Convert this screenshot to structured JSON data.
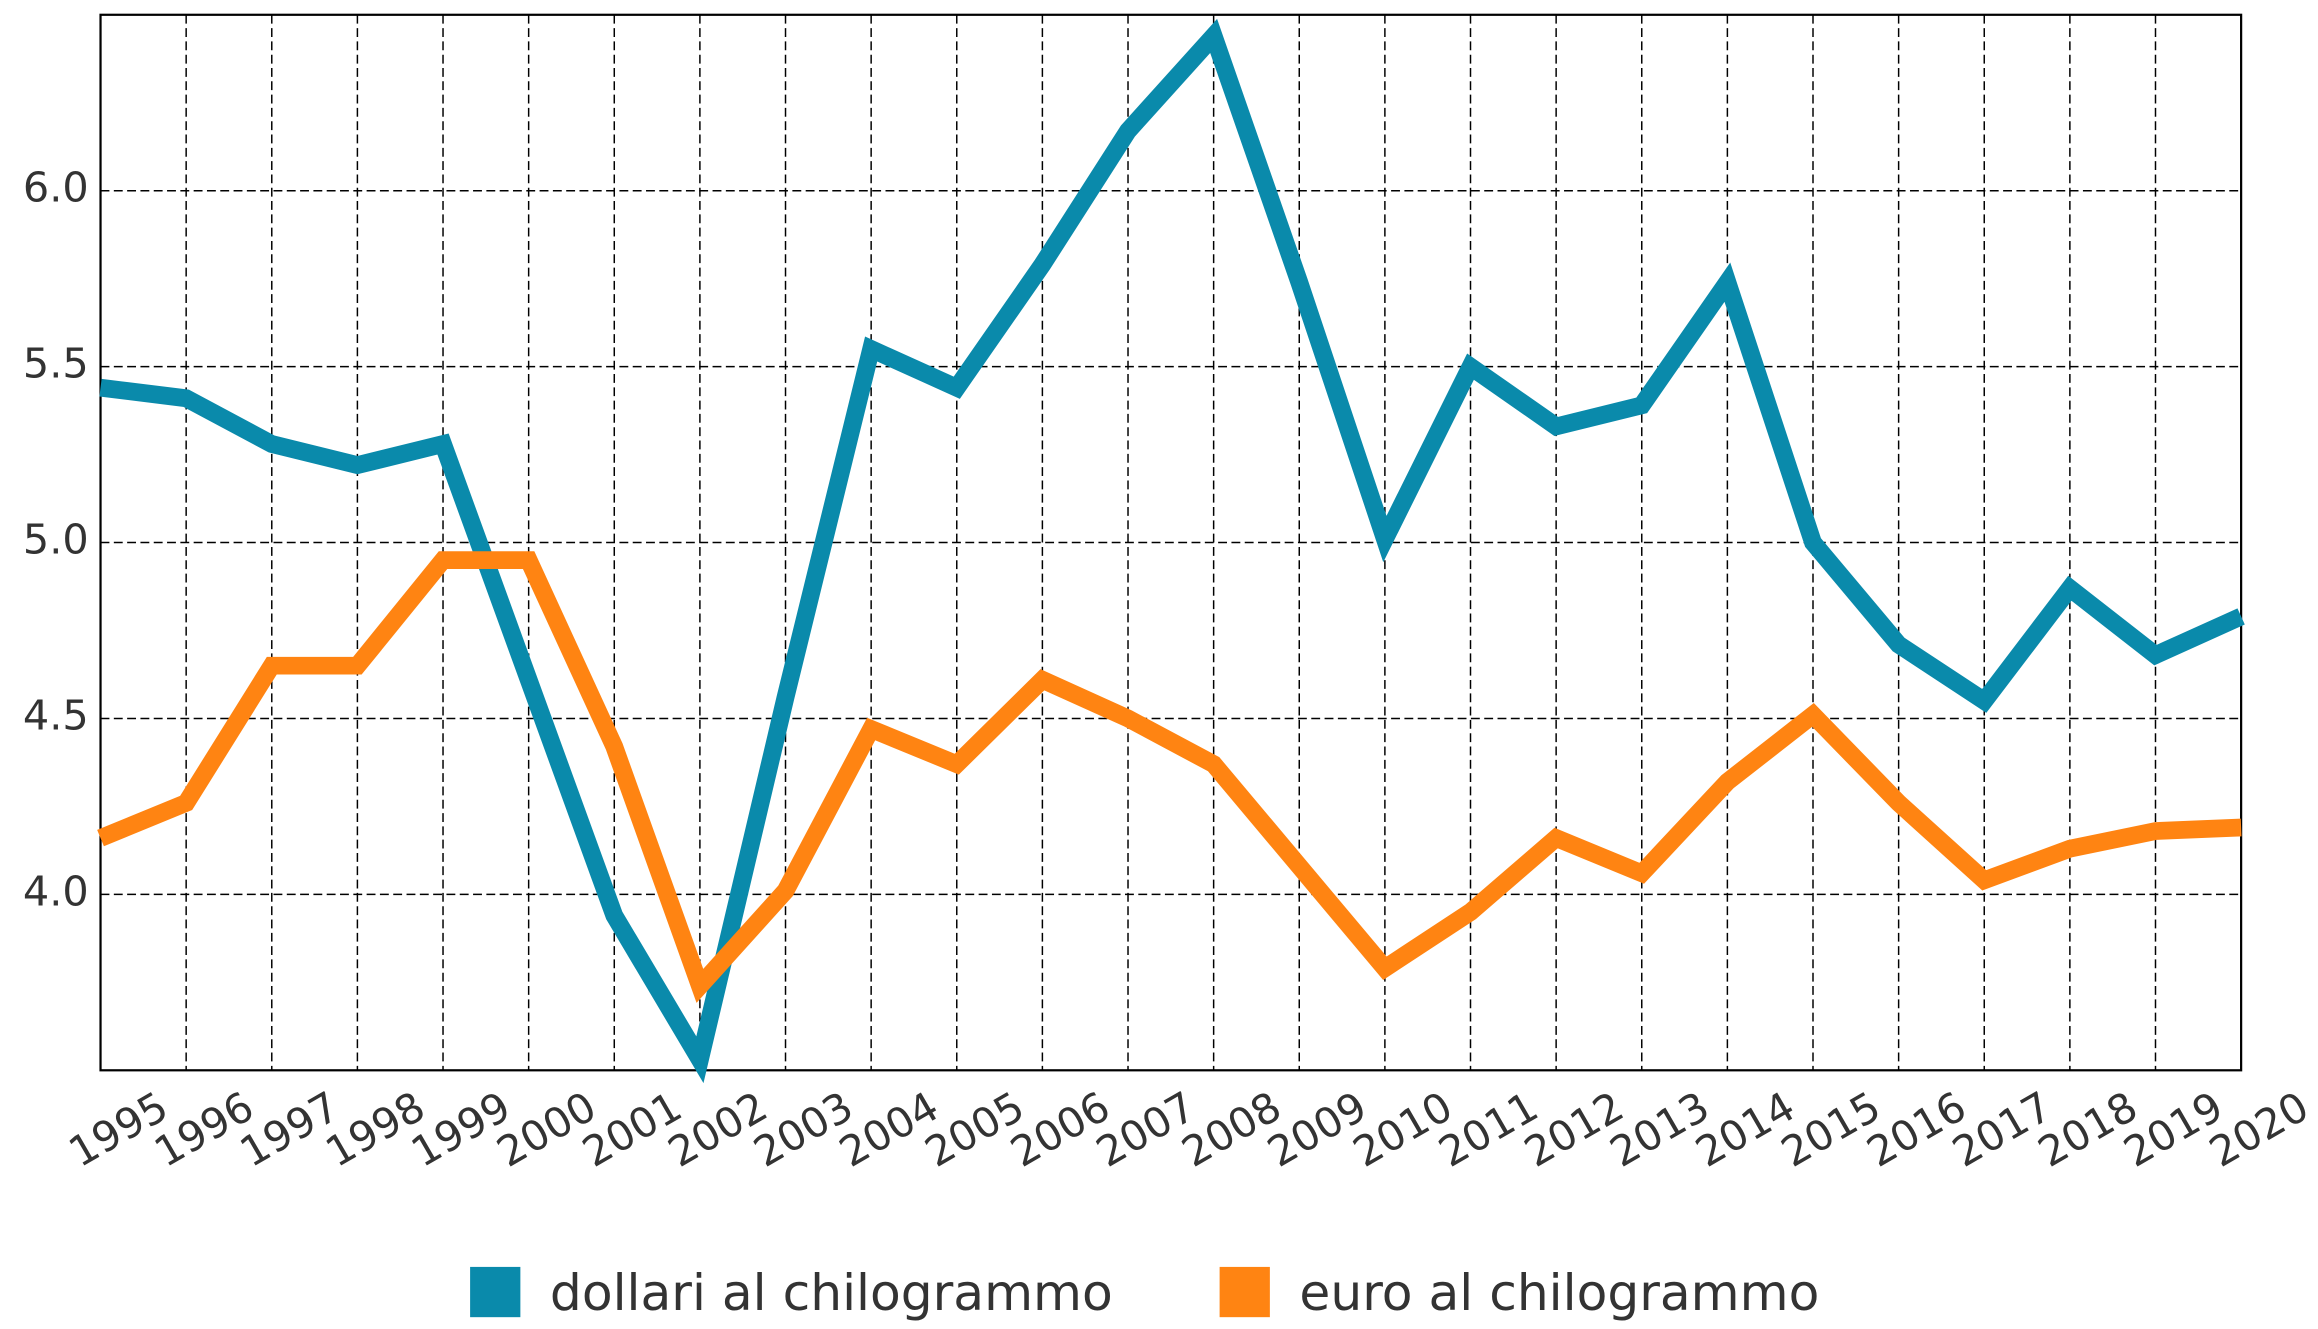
{
  "chart_data": {
    "type": "line",
    "categories": [
      "1995",
      "1996",
      "1997",
      "1998",
      "1999",
      "2000",
      "2001",
      "2002",
      "2003",
      "2004",
      "2005",
      "2006",
      "2007",
      "2008",
      "2009",
      "2010",
      "2011",
      "2012",
      "2013",
      "2014",
      "2015",
      "2016",
      "2017",
      "2018",
      "2019",
      "2020"
    ],
    "series": [
      {
        "name": "dollari al chilogrammo",
        "color": "#0a8aab",
        "values": [
          5.44,
          5.41,
          5.28,
          5.22,
          5.28,
          4.61,
          3.94,
          3.53,
          4.56,
          5.55,
          5.44,
          5.79,
          6.17,
          6.44,
          5.74,
          5.01,
          5.5,
          5.33,
          5.39,
          5.74,
          5.0,
          4.71,
          4.55,
          4.87,
          4.68,
          4.79
        ]
      },
      {
        "name": "euro al chilogrammo",
        "color": "#ff8412",
        "values": [
          4.16,
          4.26,
          4.65,
          4.65,
          4.95,
          4.95,
          4.42,
          3.74,
          4.01,
          4.47,
          4.37,
          4.61,
          4.5,
          4.37,
          4.08,
          3.79,
          3.95,
          4.16,
          4.06,
          4.32,
          4.51,
          4.26,
          4.04,
          4.13,
          4.18,
          4.19
        ]
      }
    ],
    "ylim": [
      3.5,
      6.5
    ],
    "yticks": [
      {
        "value": 4,
        "label": "4.0"
      },
      {
        "value": 4.5,
        "label": "4.5"
      },
      {
        "value": 5,
        "label": "5.0"
      },
      {
        "value": 5.5,
        "label": "5.5"
      },
      {
        "value": 6,
        "label": "6.0"
      }
    ],
    "grid": true,
    "legend": "bottom"
  }
}
